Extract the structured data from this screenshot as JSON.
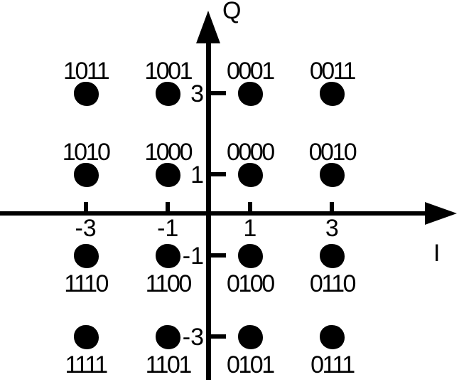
{
  "chart_data": {
    "type": "scatter",
    "description": "16-QAM constellation diagram with Gray-coded 4-bit symbols on an I/Q plane",
    "xlabel": "I",
    "ylabel": "Q",
    "x_ticks": [
      -3,
      -1,
      1,
      3
    ],
    "y_ticks": [
      3,
      1,
      -1,
      -3
    ],
    "xlim": [
      -4,
      4
    ],
    "ylim": [
      -4,
      4
    ],
    "grid": false,
    "points": [
      {
        "label": "1011",
        "i": -3,
        "q": 3
      },
      {
        "label": "1001",
        "i": -1,
        "q": 3
      },
      {
        "label": "0001",
        "i": 1,
        "q": 3
      },
      {
        "label": "0011",
        "i": 3,
        "q": 3
      },
      {
        "label": "1010",
        "i": -3,
        "q": 1
      },
      {
        "label": "1000",
        "i": -1,
        "q": 1
      },
      {
        "label": "0000",
        "i": 1,
        "q": 1
      },
      {
        "label": "0010",
        "i": 3,
        "q": 1
      },
      {
        "label": "1110",
        "i": -3,
        "q": -1
      },
      {
        "label": "1100",
        "i": -1,
        "q": -1
      },
      {
        "label": "0100",
        "i": 1,
        "q": -1
      },
      {
        "label": "0110",
        "i": 3,
        "q": -1
      },
      {
        "label": "1111",
        "i": -3,
        "q": -3
      },
      {
        "label": "1101",
        "i": -1,
        "q": -3
      },
      {
        "label": "0101",
        "i": 1,
        "q": -3
      },
      {
        "label": "0111",
        "i": 3,
        "q": -3
      }
    ],
    "colors": {
      "ink": "#000000",
      "background": "#ffffff"
    }
  }
}
